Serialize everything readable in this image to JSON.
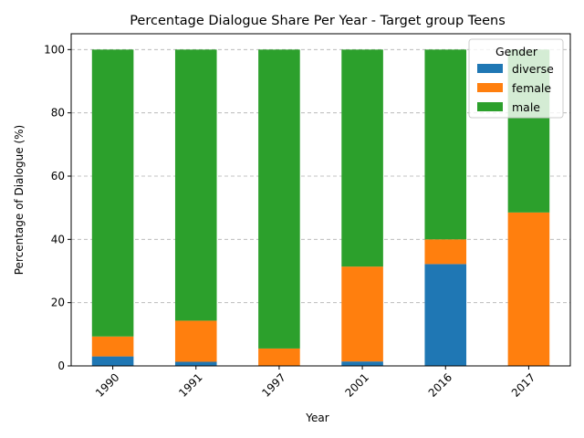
{
  "chart_data": {
    "type": "bar",
    "stacked": true,
    "title": "Percentage Dialogue Share Per Year - Target group Teens",
    "xlabel": "Year",
    "ylabel": "Percentage of Dialogue (%)",
    "ylim": [
      0,
      105
    ],
    "yticks": [
      0,
      20,
      40,
      60,
      80,
      100
    ],
    "grid": "y-dashed",
    "categories": [
      "1990",
      "1991",
      "1997",
      "2001",
      "2016",
      "2017"
    ],
    "legend": {
      "title": "Gender",
      "position": "top-right"
    },
    "series": [
      {
        "name": "diverse",
        "color": "#1f77b4",
        "values": [
          3.0,
          1.3,
          0.0,
          1.4,
          32.2,
          0.0
        ]
      },
      {
        "name": "female",
        "color": "#ff7f0e",
        "values": [
          6.3,
          13.0,
          5.5,
          30.0,
          7.8,
          48.5
        ]
      },
      {
        "name": "male",
        "color": "#2ca02c",
        "values": [
          90.7,
          85.7,
          94.5,
          68.6,
          60.0,
          51.5
        ]
      }
    ]
  }
}
